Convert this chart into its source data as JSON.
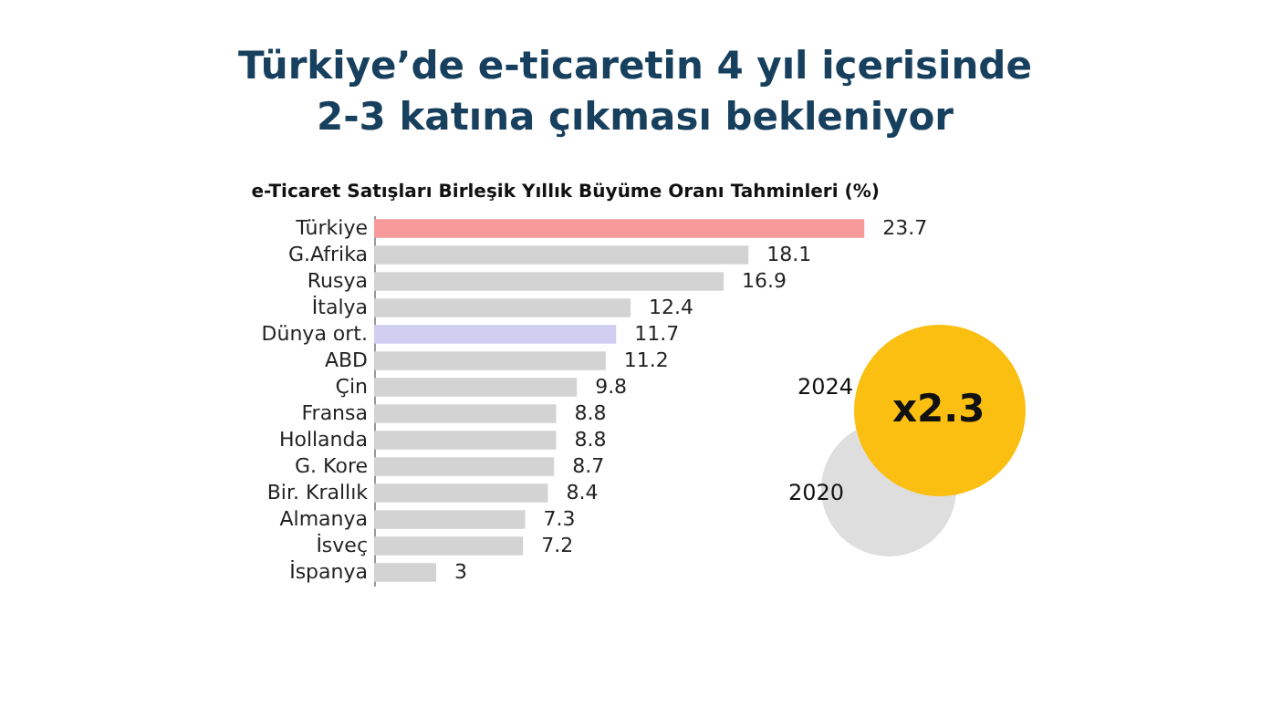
{
  "chart_data": {
    "type": "bar",
    "orientation": "horizontal",
    "data_labels": true,
    "title": "Türkiye’de e-ticaretin 4 yıl içerisinde 2-3 katına çıkması bekleniyor",
    "subtitle": "e-Ticaret Satışları Birleşik Yıllık Büyüme Oranı Tahminleri (%)",
    "categories": [
      "Türkiye",
      "G.Afrika",
      "Rusya",
      "İtalya",
      "Dünya ort.",
      "ABD",
      "Çin",
      "Fransa",
      "Hollanda",
      "G. Kore",
      "Bir. Krallık",
      "Almanya",
      "İsveç",
      "İspanya"
    ],
    "values": [
      23.7,
      18.1,
      16.9,
      12.4,
      11.7,
      11.2,
      9.8,
      8.8,
      8.8,
      8.7,
      8.4,
      7.3,
      7.2,
      3
    ],
    "colors": [
      "#f89a9a",
      "#d3d3d3",
      "#d3d3d3",
      "#d3d3d3",
      "#cfcdf0",
      "#d3d3d3",
      "#d3d3d3",
      "#d3d3d3",
      "#d3d3d3",
      "#d3d3d3",
      "#d3d3d3",
      "#d3d3d3",
      "#d3d3d3",
      "#d3d3d3"
    ],
    "annotations": [
      "2024",
      "x2.3",
      "2020"
    ]
  }
}
